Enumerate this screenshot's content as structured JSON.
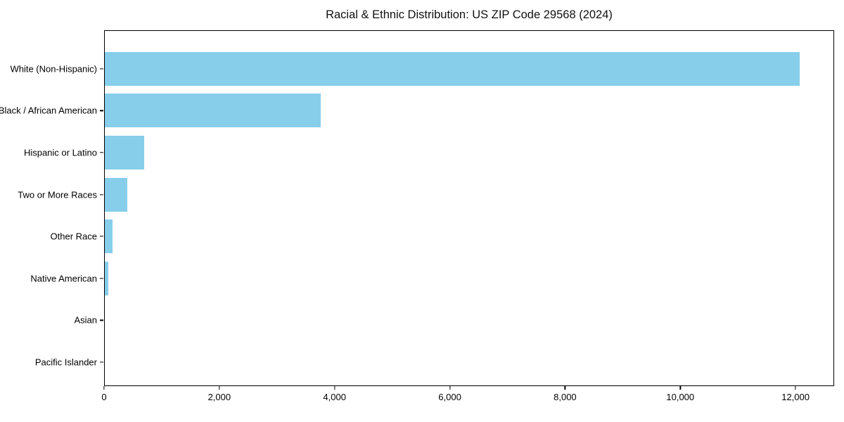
{
  "chart_data": {
    "type": "bar",
    "orientation": "horizontal",
    "title": "Racial & Ethnic Distribution: US ZIP Code 29568 (2024)",
    "categories": [
      "White (Non-Hispanic)",
      "Black / African American",
      "Hispanic or Latino",
      "Two or More Races",
      "Other Race",
      "Native American",
      "Asian",
      "Pacific Islander"
    ],
    "values": [
      12080,
      3760,
      685,
      390,
      134,
      61,
      0,
      0
    ],
    "xlabel": "",
    "ylabel": "",
    "xlim": [
      0,
      12670
    ],
    "xticks": [
      0,
      2000,
      4000,
      6000,
      8000,
      10000,
      12000
    ],
    "xtick_labels": [
      "0",
      "2,000",
      "4,000",
      "6,000",
      "8,000",
      "10,000",
      "12,000"
    ],
    "bar_color": "#87CEEB",
    "axis_color": "#000000",
    "grid": false,
    "legend": null
  }
}
